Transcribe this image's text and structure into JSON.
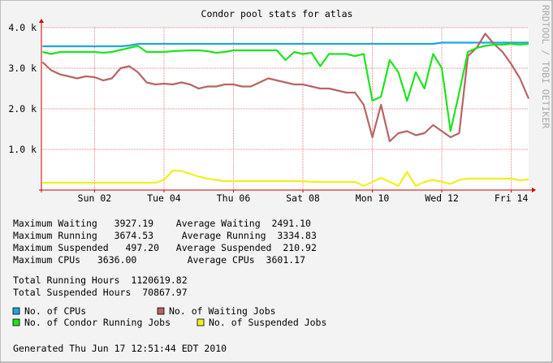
{
  "chart_data": {
    "type": "line",
    "title": "Condor pool stats for atlas",
    "watermark": "RRDTOOL / TOBI OETIKER",
    "x": [
      0.5,
      0.75,
      1,
      1.25,
      1.5,
      1.75,
      2,
      2.25,
      2.5,
      2.75,
      3,
      3.25,
      3.5,
      3.75,
      4,
      4.25,
      4.5,
      4.75,
      5,
      5.25,
      5.5,
      5.75,
      6,
      6.25,
      6.5,
      6.75,
      7,
      7.25,
      7.5,
      7.75,
      8,
      8.25,
      8.5,
      8.75,
      9,
      9.25,
      9.5,
      9.75,
      10,
      10.25,
      10.5,
      10.75,
      11,
      11.25,
      11.5,
      11.75,
      12,
      12.25,
      12.5,
      12.75,
      13,
      13.25,
      13.5,
      13.75,
      14,
      14.25,
      14.5
    ],
    "xlim": [
      0.47,
      14.5
    ],
    "xticks": [
      {
        "value": 2,
        "label": "Sun 02"
      },
      {
        "value": 4,
        "label": "Tue 04"
      },
      {
        "value": 6,
        "label": "Thu 06"
      },
      {
        "value": 8,
        "label": "Sat 08"
      },
      {
        "value": 10,
        "label": "Mon 10"
      },
      {
        "value": 12,
        "label": "Wed 12"
      },
      {
        "value": 14,
        "label": "Fri 14"
      }
    ],
    "ylim": [
      0,
      4000
    ],
    "yticks": [
      {
        "value": 1000,
        "label": "1.0 k"
      },
      {
        "value": 2000,
        "label": "2.0 k"
      },
      {
        "value": 3000,
        "label": "3.0 k"
      },
      {
        "value": 4000,
        "label": "4.0 k"
      }
    ],
    "grid": true,
    "series": [
      {
        "name": "No. of CPUs",
        "color": "#1ea6e0",
        "values": [
          3540,
          3540,
          3540,
          3540,
          3540,
          3540,
          3540,
          3540,
          3540,
          3540,
          3560,
          3600,
          3600,
          3600,
          3600,
          3600,
          3600,
          3600,
          3600,
          3600,
          3600,
          3600,
          3600,
          3600,
          3600,
          3600,
          3600,
          3600,
          3600,
          3600,
          3600,
          3600,
          3600,
          3600,
          3600,
          3600,
          3600,
          3600,
          3600,
          3600,
          3600,
          3600,
          3600,
          3600,
          3600,
          3600,
          3630,
          3630,
          3630,
          3630,
          3630,
          3630,
          3630,
          3630,
          3630,
          3630,
          3630
        ]
      },
      {
        "name": "No. of Waiting Jobs",
        "color": "#b86464",
        "values": [
          3150,
          2950,
          2850,
          2800,
          2750,
          2800,
          2780,
          2700,
          2750,
          3000,
          3050,
          2900,
          2650,
          2600,
          2620,
          2600,
          2650,
          2600,
          2500,
          2550,
          2550,
          2600,
          2600,
          2550,
          2550,
          2650,
          2750,
          2700,
          2650,
          2600,
          2600,
          2550,
          2500,
          2500,
          2450,
          2400,
          2400,
          2100,
          1300,
          2100,
          1200,
          1400,
          1450,
          1350,
          1400,
          1600,
          1450,
          1300,
          1400,
          3300,
          3500,
          3850,
          3600,
          3400,
          3100,
          2750,
          2250
        ]
      },
      {
        "name": "No. of Condor Running Jobs",
        "color": "#1ee41e",
        "values": [
          3400,
          3350,
          3400,
          3400,
          3400,
          3400,
          3400,
          3380,
          3400,
          3450,
          3500,
          3550,
          3400,
          3400,
          3400,
          3420,
          3430,
          3440,
          3440,
          3420,
          3380,
          3400,
          3440,
          3440,
          3440,
          3440,
          3440,
          3440,
          3200,
          3400,
          3350,
          3380,
          3050,
          3350,
          3350,
          3350,
          3300,
          3350,
          2200,
          2300,
          3200,
          2900,
          2200,
          2900,
          2500,
          3350,
          3000,
          1450,
          2400,
          3400,
          3500,
          3550,
          3580,
          3580,
          3600,
          3580,
          3600
        ]
      },
      {
        "name": "No. of Suspended Jobs",
        "color": "#f0f01e",
        "values": [
          180,
          180,
          180,
          180,
          180,
          180,
          180,
          180,
          180,
          180,
          180,
          180,
          180,
          180,
          250,
          480,
          470,
          400,
          330,
          280,
          250,
          220,
          220,
          220,
          220,
          220,
          220,
          220,
          220,
          220,
          220,
          200,
          200,
          200,
          200,
          200,
          200,
          100,
          200,
          300,
          200,
          100,
          450,
          100,
          200,
          250,
          200,
          150,
          250,
          280,
          280,
          280,
          280,
          280,
          280,
          240,
          260
        ]
      }
    ],
    "summary": [
      "Maximum Waiting   3927.19    Average Waiting  2491.10",
      "Maximum Running   3674.53     Average Running  3334.83",
      "Maximum Suspended   497.20   Average Suspended  210.92",
      "Maximum CPUs   3636.00         Average CPUs  3601.17",
      "Total Running Hours  1120619.82",
      "Total Suspended Hours  70867.97"
    ],
    "footer": "Generated Thu Jun 17 12:51:44 EDT 2010"
  }
}
